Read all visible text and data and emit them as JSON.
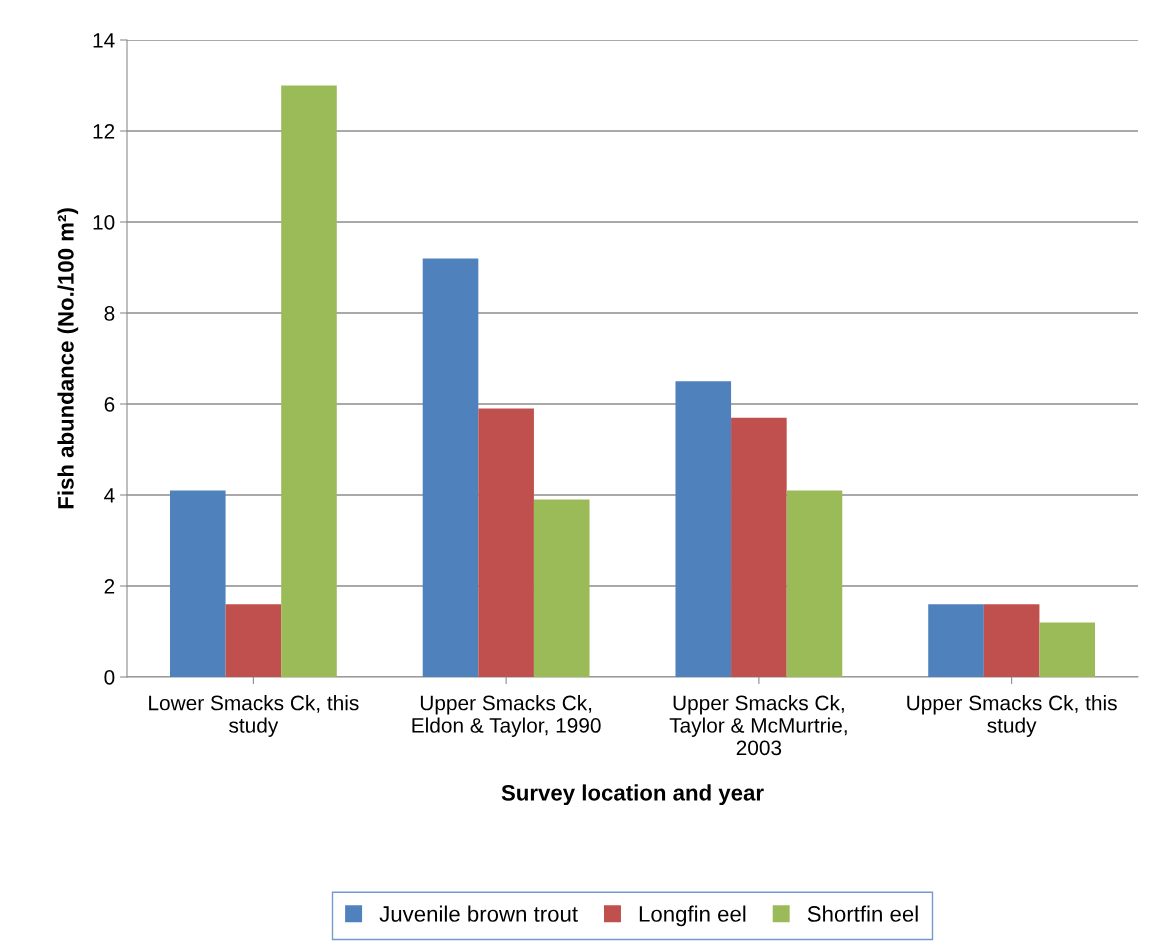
{
  "chart_data": {
    "type": "bar",
    "categories": [
      "Lower Smacks Ck, this\nstudy",
      "Upper Smacks Ck,\nEldon & Taylor, 1990",
      "Upper Smacks Ck,\nTaylor & McMurtrie,\n2003",
      "Upper Smacks Ck, this\nstudy"
    ],
    "series": [
      {
        "name": "Juvenile brown trout",
        "color": "#4f81bd",
        "values": [
          4.1,
          9.2,
          6.5,
          1.6
        ]
      },
      {
        "name": "Longfin eel",
        "color": "#c0504d",
        "values": [
          1.6,
          5.9,
          5.7,
          1.6
        ]
      },
      {
        "name": "Shortfin eel",
        "color": "#9bbb59",
        "values": [
          13,
          3.9,
          4.1,
          1.2
        ]
      }
    ],
    "xlabel": "Survey location and year",
    "ylabel": "Fish abundance (No./100 m²)",
    "ylim": [
      0,
      14
    ],
    "yticks": [
      0,
      2,
      4,
      6,
      8,
      10,
      12,
      14
    ],
    "grid": "y",
    "legend": "bottom"
  }
}
